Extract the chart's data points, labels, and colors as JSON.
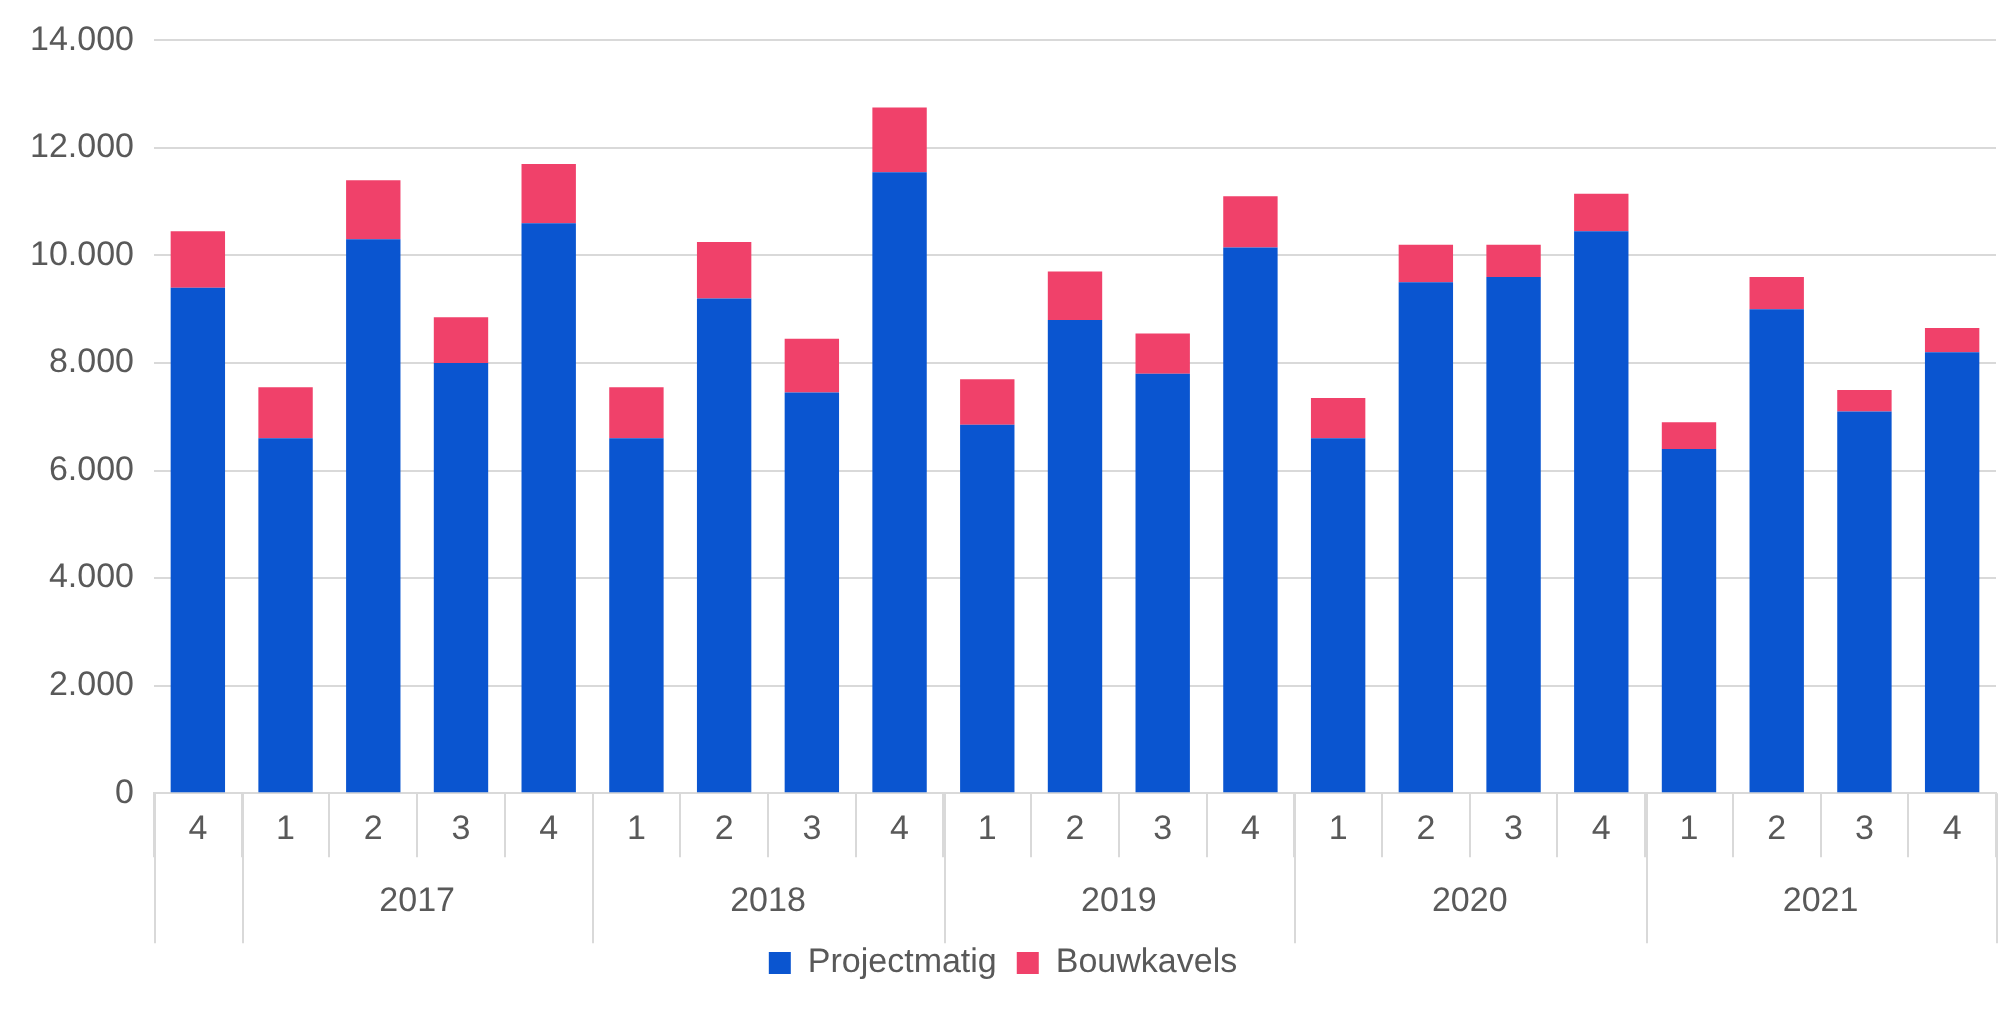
{
  "chart_data": {
    "type": "bar",
    "stacked": true,
    "categories": [
      "4",
      "1",
      "2",
      "3",
      "4",
      "1",
      "2",
      "3",
      "4",
      "1",
      "2",
      "3",
      "4",
      "1",
      "2",
      "3",
      "4",
      "1",
      "2",
      "3",
      "4"
    ],
    "series": [
      {
        "name": "Projectmatig",
        "color": "#0a55d0",
        "values": [
          9400,
          6600,
          10300,
          8000,
          10600,
          6600,
          9200,
          7450,
          11550,
          6850,
          8800,
          7800,
          10150,
          6600,
          9500,
          9600,
          10450,
          6400,
          9000,
          7100,
          8200
        ]
      },
      {
        "name": "Bouwkavels",
        "color": "#f0416a",
        "values": [
          1050,
          950,
          1100,
          850,
          1100,
          950,
          1050,
          1000,
          1200,
          850,
          900,
          750,
          950,
          750,
          700,
          600,
          700,
          500,
          600,
          400,
          450
        ]
      }
    ],
    "annotations": [
      "2017",
      "2018",
      "2019",
      "2020",
      "2021"
    ],
    "ylim": [
      0,
      14000
    ],
    "yticks": [
      {
        "value": 0,
        "label": "0"
      },
      {
        "value": 2000,
        "label": "2.000"
      },
      {
        "value": 4000,
        "label": "4.000"
      },
      {
        "value": 6000,
        "label": "6.000"
      },
      {
        "value": 8000,
        "label": "8.000"
      },
      {
        "value": 10000,
        "label": "10.000"
      },
      {
        "value": 12000,
        "label": "12.000"
      },
      {
        "value": 14000,
        "label": "14.000"
      }
    ],
    "grid": "y",
    "legend": "bottom"
  }
}
